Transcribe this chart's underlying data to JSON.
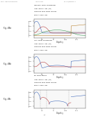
{
  "header_left": "Patent Application Publication",
  "header_mid": "Aug. 30, 2016",
  "header_right": "US 2016/0254349 A1",
  "fig_labels": [
    "Fig. 44a",
    "Fig. 44b",
    "Fig. 44c"
  ],
  "chart_titles": [
    [
      "INDIVIDUAL DOPANT DISTRIBUTIONS",
      "ALONG VERTICAL LINE (TOP)",
      "TRANSISTOR DRAIN DOPING POSITION",
      "DRAIN AT DRIFT SIDE"
    ],
    [
      "TOTAL DOPANT DISTRIBUTIONS",
      "ALONG VERTICAL LINE (TOP)",
      "TRANSISTOR DRAIN DOPING POSITION",
      "DRAIN AT DRIFT SIDE"
    ],
    [
      "NET DOPANT PROFILE",
      "ALONG VERTICAL LINE (TOP)",
      "TRANSISTOR DRAIN DOPING POSITION",
      "DRAIN AT DRIFT SIDE"
    ]
  ],
  "xlabel": "Depth y",
  "ylabel": "DOPING CONCENTRATION",
  "footer": "1/2",
  "bg_color": "#ffffff"
}
